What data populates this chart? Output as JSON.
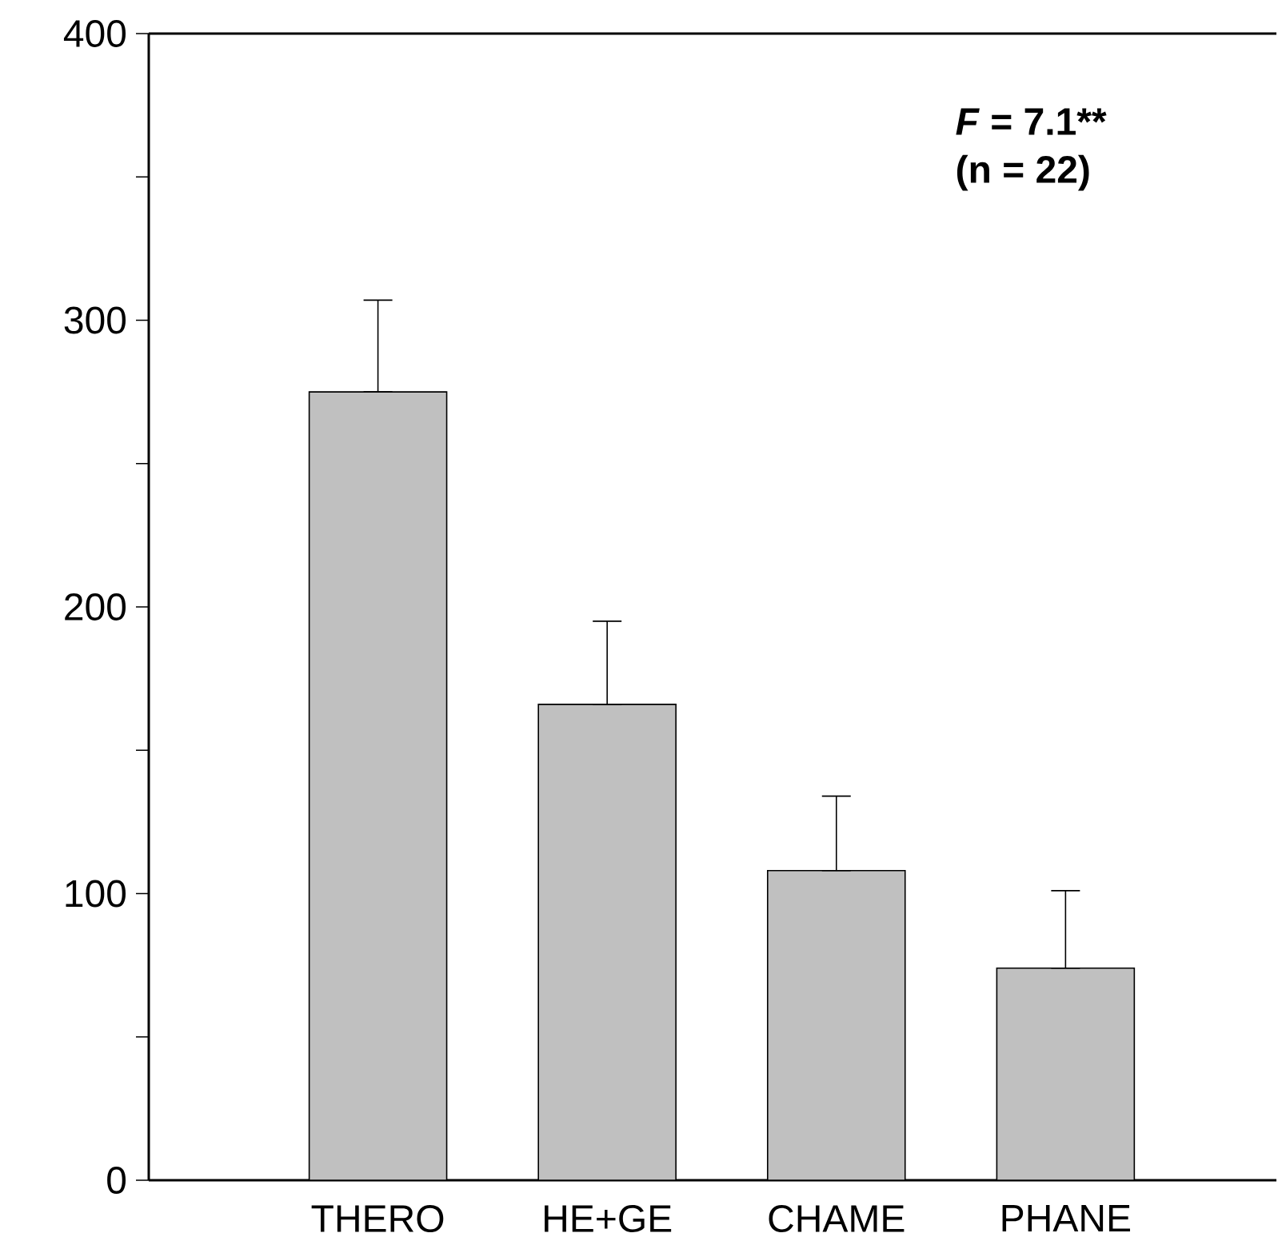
{
  "chart_data": {
    "type": "bar",
    "categories": [
      "THERO",
      "HE+GE",
      "CHAME",
      "PHANE"
    ],
    "values": [
      275,
      166,
      108,
      74
    ],
    "errors": [
      [
        275,
        307
      ],
      [
        166,
        195
      ],
      [
        108,
        134
      ],
      [
        74,
        101
      ]
    ],
    "color": "#c0c0c0",
    "ylim": [
      0,
      400
    ],
    "yticks": [
      0,
      {
        "value": 50,
        "label": null
      },
      100,
      {
        "value": 150,
        "label": null
      },
      200,
      {
        "value": 250,
        "label": null
      },
      300,
      {
        "value": 350,
        "label": null
      },
      400
    ],
    "annotations": [
      "*F* = 7.1**",
      "(n = 22)"
    ]
  }
}
